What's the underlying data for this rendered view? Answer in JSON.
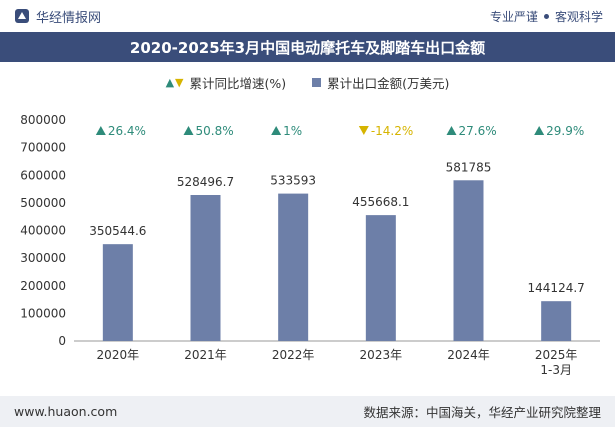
{
  "header": {
    "brand": "华经情报网",
    "tagline_left": "专业严谨",
    "tagline_right": "客观科学"
  },
  "colors": {
    "brand": "#3a4d7a",
    "bar": "#6d7fa8",
    "up": "#2e8b7a",
    "down": "#d6b400"
  },
  "legend": {
    "growth_label": "累计同比增速(%)",
    "value_label": "累计出口金额(万美元)"
  },
  "footer": {
    "url": "www.huaon.com",
    "source": "数据来源：中国海关，华经产业研究院整理"
  },
  "chart_data": {
    "type": "bar",
    "title": "2020-2025年3月中国电动摩托车及脚踏车出口金额",
    "categories": [
      "2020年",
      "2021年",
      "2022年",
      "2023年",
      "2024年",
      "2025年 1-3月"
    ],
    "series": [
      {
        "name": "累计出口金额(万美元)",
        "values": [
          350544.6,
          528496.7,
          533593,
          455668.1,
          581785,
          144124.7
        ],
        "labels": [
          "350544.6",
          "528496.7",
          "533593",
          "455668.1",
          "581785",
          "144124.7"
        ]
      },
      {
        "name": "累计同比增速(%)",
        "values": [
          26.4,
          50.8,
          1,
          -14.2,
          27.6,
          29.9
        ],
        "labels": [
          "26.4%",
          "50.8%",
          "1%",
          "-14.2%",
          "27.6%",
          "29.9%"
        ]
      }
    ],
    "ylim": [
      0,
      800000
    ],
    "yticks": [
      "0",
      "100000",
      "200000",
      "300000",
      "400000",
      "500000",
      "600000",
      "700000",
      "800000"
    ],
    "grid": false
  }
}
